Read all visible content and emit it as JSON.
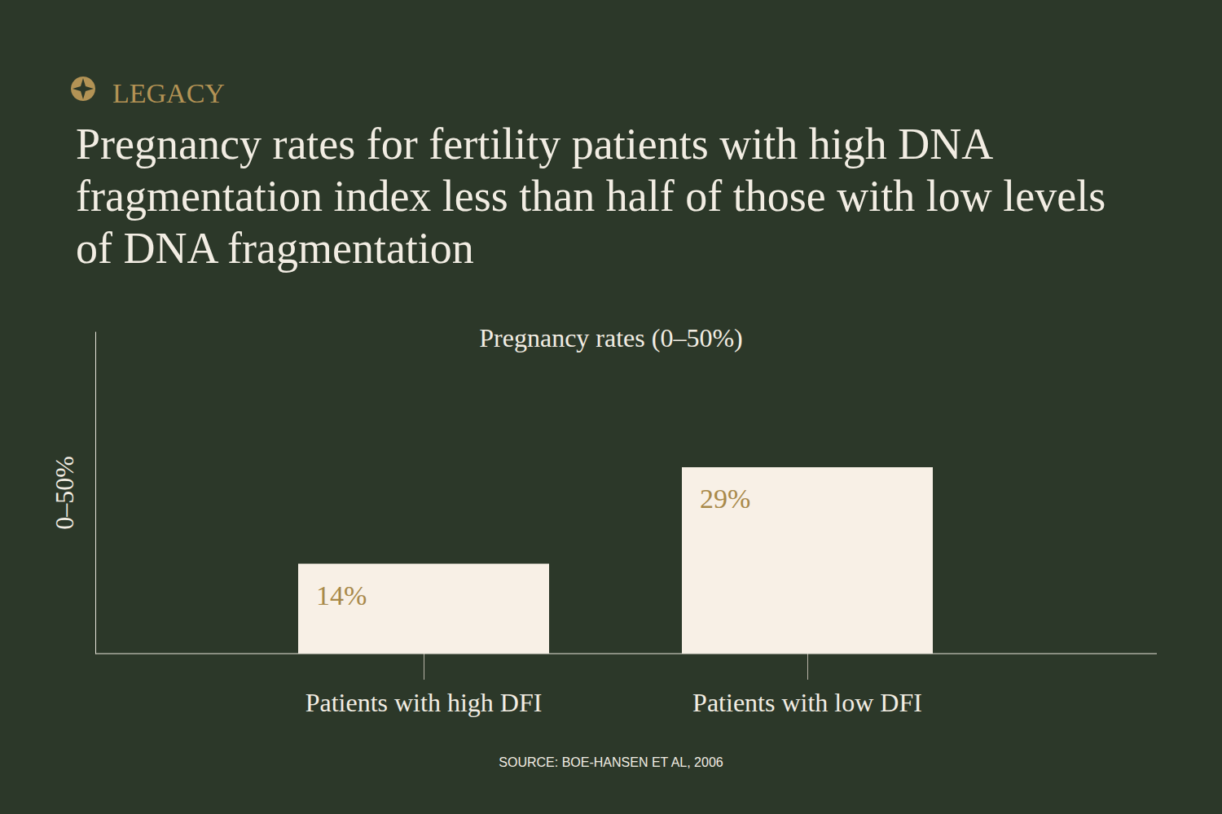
{
  "brand": "LEGACY",
  "source": "SOURCE: BOE-HANSEN ET AL, 2006",
  "chart_data": {
    "type": "bar",
    "title": "Pregnancy rates for fertility patients with high DNA fragmentation index less than half of those with low levels of DNA fragmentation",
    "subtitle": "Pregnancy rates (0–50%)",
    "y_label": "0–50%",
    "categories": [
      "Patients with high DFI",
      "Patients with low DFI"
    ],
    "values": [
      14,
      29
    ],
    "value_labels": [
      "14%",
      "29%"
    ],
    "data_labels": true,
    "ylim": [
      0,
      50
    ],
    "tick_labels": "x",
    "grid": false,
    "color": "#f8f0e6"
  }
}
